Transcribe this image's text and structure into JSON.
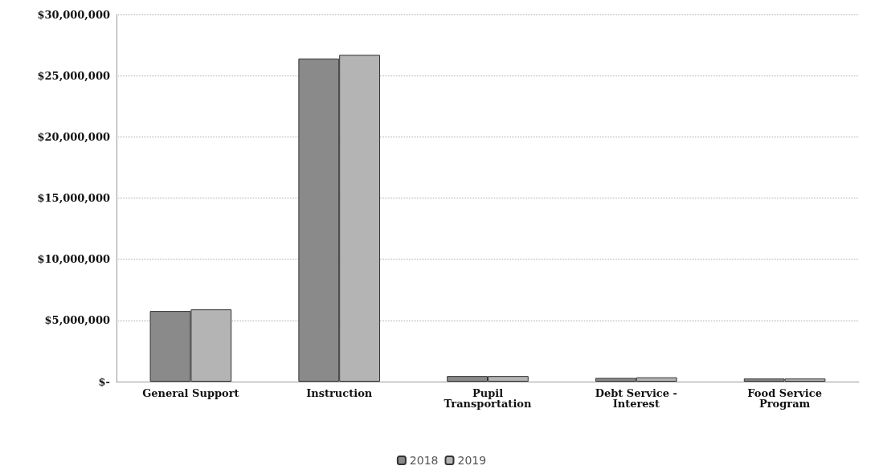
{
  "chart_data": {
    "type": "bar",
    "categories": [
      "General Support",
      "Instruction",
      "Pupil\nTransportation",
      "Debt Service -\nInterest",
      "Food Service\nProgram"
    ],
    "series": [
      {
        "name": "2018",
        "color": "#8a8a8a",
        "values": [
          5770000,
          26400000,
          450000,
          300000,
          250000
        ]
      },
      {
        "name": "2019",
        "color": "#b4b4b4",
        "values": [
          5900000,
          26700000,
          450000,
          350000,
          250000
        ]
      }
    ],
    "ylim": [
      0,
      30000000
    ],
    "yticks": [
      {
        "value": 0,
        "label": "$-"
      },
      {
        "value": 5000000,
        "label": "$5,000,000"
      },
      {
        "value": 10000000,
        "label": "$10,000,000"
      },
      {
        "value": 15000000,
        "label": "$15,000,000"
      },
      {
        "value": 20000000,
        "label": "$20,000,000"
      },
      {
        "value": 25000000,
        "label": "$25,000,000"
      },
      {
        "value": 30000000,
        "label": "$30,000,000"
      }
    ],
    "grid": true,
    "legend": "bottom"
  }
}
